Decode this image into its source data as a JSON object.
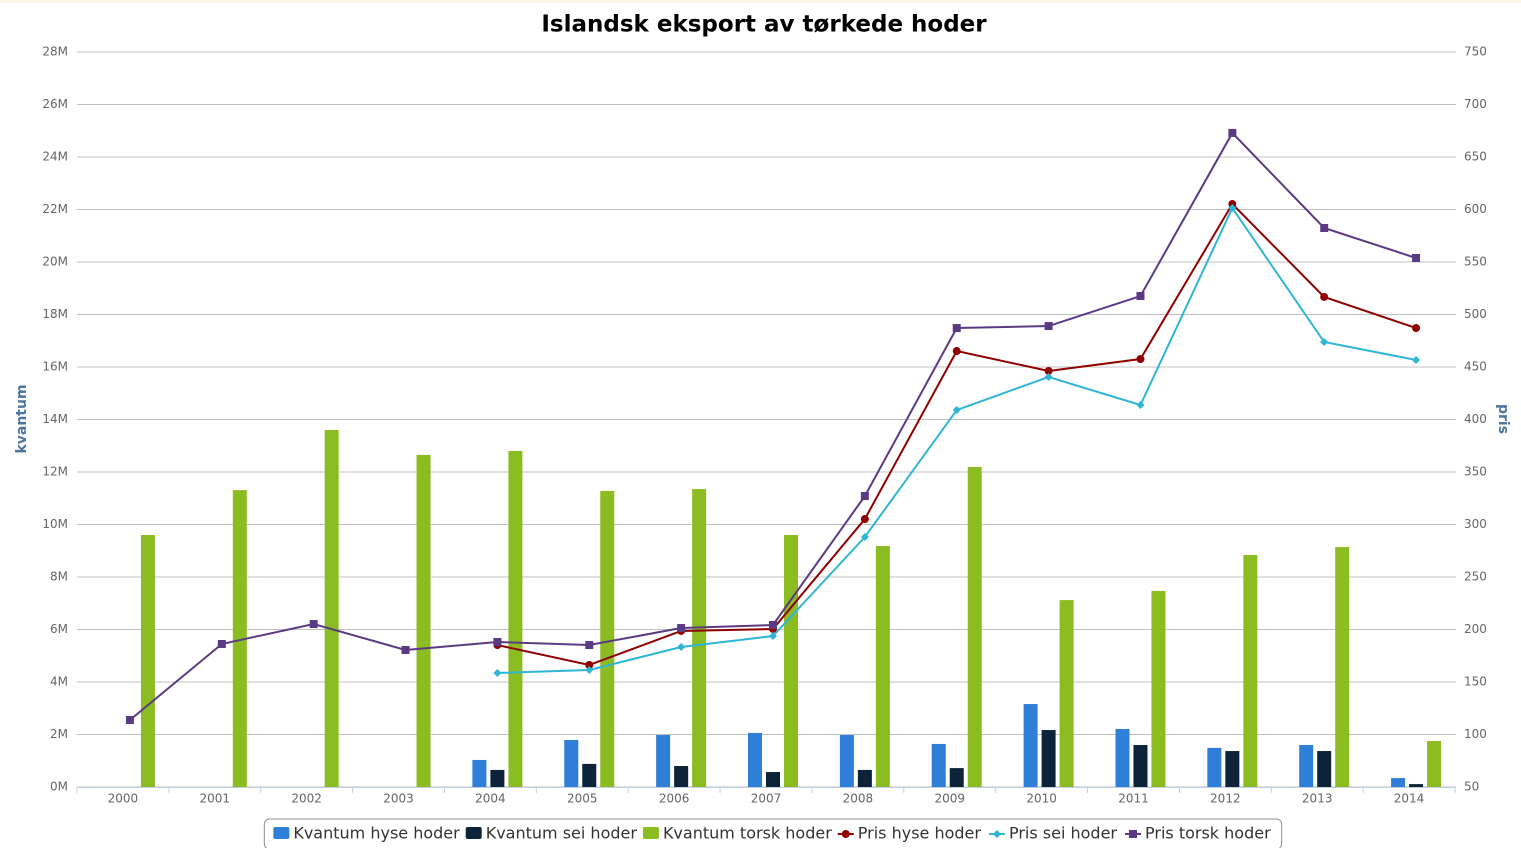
{
  "chart_data": {
    "type": "combo",
    "title": "Islandsk eksport av tørkede hoder",
    "y_label": "kvantum",
    "y2_label": "pris",
    "categories": [
      "2000",
      "2001",
      "2002",
      "2003",
      "2004",
      "2005",
      "2006",
      "2007",
      "2008",
      "2009",
      "2010",
      "2011",
      "2012",
      "2013",
      "2014"
    ],
    "ylim": [
      0,
      28000000
    ],
    "yticks": [
      {
        "value": 0,
        "label": "0M"
      },
      {
        "value": 2000000,
        "label": "2M"
      },
      {
        "value": 4000000,
        "label": "4M"
      },
      {
        "value": 6000000,
        "label": "6M"
      },
      {
        "value": 8000000,
        "label": "8M"
      },
      {
        "value": 10000000,
        "label": "10M"
      },
      {
        "value": 12000000,
        "label": "12M"
      },
      {
        "value": 14000000,
        "label": "14M"
      },
      {
        "value": 16000000,
        "label": "16M"
      },
      {
        "value": 18000000,
        "label": "18M"
      },
      {
        "value": 20000000,
        "label": "20M"
      },
      {
        "value": 22000000,
        "label": "22M"
      },
      {
        "value": 24000000,
        "label": "24M"
      },
      {
        "value": 26000000,
        "label": "26M"
      },
      {
        "value": 28000000,
        "label": "28M"
      }
    ],
    "y2lim": [
      50,
      750
    ],
    "y2ticks": [
      50,
      100,
      150,
      200,
      250,
      300,
      350,
      400,
      450,
      500,
      550,
      600,
      650,
      700,
      750
    ],
    "grid": true,
    "legend": "bottom",
    "series": [
      {
        "name": "Kvantum hyse hoder",
        "type": "bar",
        "color": "#2f7ed8",
        "axis": "y",
        "values": [
          null,
          null,
          null,
          null,
          1030000,
          1790000,
          1980000,
          2060000,
          1980000,
          1640000,
          3160000,
          2210000,
          1490000,
          1600000,
          340000
        ]
      },
      {
        "name": "Kvantum sei hoder",
        "type": "bar",
        "color": "#0d233a",
        "axis": "y",
        "values": [
          null,
          null,
          null,
          null,
          650000,
          880000,
          800000,
          570000,
          650000,
          720000,
          2170000,
          1600000,
          1370000,
          1370000,
          110000
        ]
      },
      {
        "name": "Kvantum torsk hoder",
        "type": "bar",
        "color": "#8bbc21",
        "axis": "y",
        "values": [
          9600000,
          11310000,
          13600000,
          12650000,
          12800000,
          11280000,
          11350000,
          9600000,
          9180000,
          12190000,
          7120000,
          7470000,
          8840000,
          9140000,
          1750000
        ]
      },
      {
        "name": "Pris hyse hoder",
        "type": "line",
        "marker": "circle",
        "color": "#910000",
        "axis": "y2",
        "values": [
          null,
          null,
          null,
          null,
          185.2,
          166.2,
          198.6,
          200.5,
          305.2,
          465.2,
          446.2,
          457.6,
          605.2,
          516.7,
          487.1
        ]
      },
      {
        "name": "Pris sei hoder",
        "type": "line",
        "marker": "diamond",
        "color": "#2fb5d5",
        "axis": "y2",
        "values": [
          null,
          null,
          null,
          null,
          158.6,
          161.4,
          183.3,
          193.8,
          288.1,
          409,
          440.5,
          413.8,
          601.4,
          473.8,
          456.7
        ]
      },
      {
        "name": "Pris torsk hoder",
        "type": "line",
        "marker": "square",
        "color": "#5b3a84",
        "axis": "y2",
        "values": [
          113.8,
          186.2,
          205.2,
          180.5,
          188.1,
          185.2,
          201.4,
          204.3,
          327.1,
          487.1,
          489,
          517.6,
          672.9,
          582.4,
          553.8
        ]
      }
    ]
  }
}
